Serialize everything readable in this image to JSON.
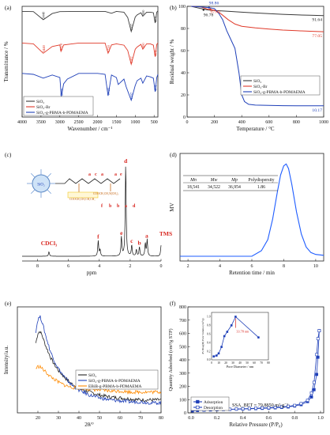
{
  "chart_data": [
    {
      "panel": "(a)",
      "type": "line",
      "xlabel": "Wavenumber / cm⁻¹",
      "ylabel": "Transmittance / %",
      "xlim": [
        4000,
        400
      ],
      "ticks_x": [
        "4000",
        "3500",
        "3000",
        "2500",
        "2000",
        "1500",
        "1000",
        "500"
      ],
      "tick_vals_x": [
        4000,
        3500,
        3000,
        2500,
        2000,
        1500,
        1000,
        500
      ],
      "legend": [
        "SiO₂",
        "SiO₂-Br",
        "SiO₂-g-PBMA-b-PDMAEMA"
      ],
      "legend_position": "bottom-left",
      "colors": [
        "#3a3a3a",
        "#e03a2a",
        "#1e3fb8"
      ],
      "annotations": [
        {
          "text": "3440",
          "series": 0,
          "x": 3440
        },
        {
          "text": "1107",
          "series": 0,
          "x": 1107
        },
        {
          "text": "800",
          "series": 0,
          "x": 800
        },
        {
          "text": "474",
          "series": 0,
          "x": 474
        },
        {
          "text": "3440",
          "series": 1,
          "x": 3440
        },
        {
          "text": "2970",
          "series": 1,
          "x": 2970
        },
        {
          "text": "1720",
          "series": 1,
          "x": 1720
        },
        {
          "text": "1107",
          "series": 1,
          "x": 1107
        },
        {
          "text": "800",
          "series": 1,
          "x": 800
        },
        {
          "text": "474",
          "series": 1,
          "x": 474
        },
        {
          "text": "2960",
          "series": 2,
          "x": 2960
        },
        {
          "text": "1720",
          "series": 2,
          "x": 1720
        },
        {
          "text": "1107",
          "series": 2,
          "x": 1107
        },
        {
          "text": "474",
          "series": 2,
          "x": 474
        }
      ],
      "series": [
        {
          "name": "SiO₂",
          "x": [
            4000,
            3700,
            3440,
            3200,
            3000,
            2500,
            2000,
            1800,
            1630,
            1500,
            1300,
            1200,
            1107,
            1000,
            950,
            850,
            800,
            700,
            600,
            520,
            474,
            430,
            400
          ],
          "y": [
            0.93,
            0.92,
            0.62,
            0.85,
            0.92,
            0.93,
            0.93,
            0.93,
            0.86,
            0.93,
            0.9,
            0.7,
            0.18,
            0.72,
            0.8,
            0.88,
            0.75,
            0.9,
            0.9,
            0.88,
            0.5,
            0.9,
            0.95
          ]
        },
        {
          "name": "SiO₂-Br",
          "x": [
            4000,
            3700,
            3440,
            3200,
            3000,
            2970,
            2900,
            2500,
            2000,
            1800,
            1720,
            1630,
            1500,
            1300,
            1200,
            1107,
            1000,
            950,
            850,
            800,
            700,
            600,
            520,
            474,
            430,
            400
          ],
          "y": [
            0.93,
            0.9,
            0.55,
            0.8,
            0.86,
            0.62,
            0.86,
            0.93,
            0.93,
            0.93,
            0.55,
            0.86,
            0.9,
            0.85,
            0.65,
            0.14,
            0.7,
            0.78,
            0.88,
            0.7,
            0.9,
            0.9,
            0.85,
            0.42,
            0.88,
            0.93
          ]
        },
        {
          "name": "SiO₂-g-PBMA-b-PDMAEMA",
          "x": [
            4000,
            3700,
            3440,
            3200,
            3000,
            2960,
            2900,
            2800,
            2500,
            2000,
            1800,
            1720,
            1630,
            1500,
            1450,
            1300,
            1240,
            1107,
            1000,
            950,
            850,
            800,
            700,
            600,
            520,
            474,
            430,
            400
          ],
          "y": [
            0.93,
            0.9,
            0.78,
            0.88,
            0.8,
            0.2,
            0.6,
            0.75,
            0.93,
            0.93,
            0.9,
            0.22,
            0.88,
            0.8,
            0.58,
            0.75,
            0.5,
            0.08,
            0.55,
            0.7,
            0.78,
            0.62,
            0.85,
            0.82,
            0.78,
            0.35,
            0.8,
            0.9
          ]
        }
      ]
    },
    {
      "panel": "(b)",
      "type": "line",
      "xlabel": "Temperature / °C",
      "ylabel": "Residual weight / %",
      "xlim": [
        0,
        1000
      ],
      "ylim": [
        0,
        100
      ],
      "ticks_x": [
        "0",
        "200",
        "400",
        "600",
        "800",
        "1000"
      ],
      "ticks_y": [
        "0",
        "20",
        "40",
        "60",
        "80",
        "100"
      ],
      "legend": [
        "SiO₂",
        "SiO₂-Br",
        "SiO₂-g-PBMA-b-PDMAEMA"
      ],
      "legend_position": "center-right",
      "colors": [
        "#3a3a3a",
        "#e03a2a",
        "#1e3fb8"
      ],
      "annotations": [
        {
          "text": "98.86",
          "x": 160,
          "y": 98.86
        },
        {
          "text": "96.78",
          "x": 120,
          "y": 96.78
        },
        {
          "text": "97.40",
          "x": 170,
          "y": 97.4
        },
        {
          "text": "91.64",
          "x": 1000,
          "y": 91.64
        },
        {
          "text": "77.05",
          "x": 1000,
          "y": 77.05
        },
        {
          "text": "10.17",
          "x": 1000,
          "y": 10.17
        }
      ],
      "series": [
        {
          "name": "SiO₂",
          "x": [
            30,
            100,
            150,
            200,
            300,
            400,
            500,
            600,
            700,
            800,
            900,
            1000
          ],
          "y": [
            100,
            98,
            96.78,
            96.3,
            95.5,
            94.7,
            94,
            93.4,
            92.8,
            92.3,
            91.9,
            91.64
          ]
        },
        {
          "name": "SiO₂-Br",
          "x": [
            30,
            100,
            150,
            200,
            250,
            300,
            350,
            400,
            500,
            600,
            700,
            800,
            900,
            1000
          ],
          "y": [
            100,
            99.5,
            97.4,
            96.5,
            93,
            88,
            84,
            82,
            80.5,
            79.5,
            78.6,
            78,
            77.5,
            77.05
          ]
        },
        {
          "name": "SiO₂-g-PBMA-b-PDMAEMA",
          "x": [
            30,
            100,
            160,
            200,
            230,
            260,
            290,
            320,
            350,
            380,
            400,
            420,
            450,
            500,
            600,
            700,
            800,
            900,
            1000
          ],
          "y": [
            100,
            99.5,
            98.86,
            98,
            94,
            88,
            78,
            70,
            62,
            40,
            20,
            14,
            11.5,
            10.8,
            10.5,
            10.3,
            10.25,
            10.2,
            10.17
          ]
        }
      ]
    },
    {
      "panel": "(c)",
      "type": "line",
      "xlabel": "ppm",
      "xlim": [
        9,
        0
      ],
      "ticks_x": [
        "8",
        "6",
        "4",
        "2",
        "0"
      ],
      "tick_vals_x": [
        8,
        6,
        4,
        2,
        0
      ],
      "peak_labels": [
        {
          "text": "CDCl₃",
          "x": 7.26
        },
        {
          "text": "f",
          "x": 4.07
        },
        {
          "text": "e",
          "x": 2.57
        },
        {
          "text": "d",
          "x": 2.29
        },
        {
          "text": "c",
          "x": 1.9
        },
        {
          "text": "b",
          "x": 1.4
        },
        {
          "text": "a",
          "x": 0.93
        },
        {
          "text": "TMS",
          "x": 0
        }
      ],
      "peaks": [
        {
          "x": 7.26,
          "h": 0.05
        },
        {
          "x": 4.07,
          "h": 0.17
        },
        {
          "x": 3.95,
          "h": 0.07
        },
        {
          "x": 2.57,
          "h": 0.21
        },
        {
          "x": 2.29,
          "h": 1.0
        },
        {
          "x": 1.9,
          "h": 0.12
        },
        {
          "x": 1.6,
          "h": 0.07
        },
        {
          "x": 1.4,
          "h": 0.1
        },
        {
          "x": 1.02,
          "h": 0.14
        },
        {
          "x": 0.9,
          "h": 0.18
        },
        {
          "x": 0.0,
          "h": 0.12
        }
      ],
      "structure_labels": [
        "a",
        "c",
        "a",
        "a",
        "e",
        "f",
        "b",
        "b",
        "a",
        "d",
        "COOCH₂CH₂N(CH₃)₂",
        "COOCH₂CH₂CH₂CH₃",
        "SiO₂"
      ]
    },
    {
      "panel": "(d)",
      "type": "line",
      "xlabel": "Retention time / min",
      "ylabel": "MV",
      "xlim": [
        1.5,
        10.5
      ],
      "ticks_x": [
        "2",
        "4",
        "6",
        "8",
        "10"
      ],
      "table": {
        "headers": [
          "Mn",
          "Mw",
          "Mp",
          "Polydispersity"
        ],
        "row": [
          "18,541",
          "34,522",
          "36,954",
          "1.86"
        ]
      },
      "series": [
        {
          "name": "GPC",
          "x": [
            1.5,
            6.0,
            6.6,
            7.0,
            7.3,
            7.6,
            7.8,
            8.0,
            8.15,
            8.3,
            8.5,
            8.8,
            9.1,
            9.4,
            9.7,
            10.0,
            10.5
          ],
          "y": [
            0,
            0,
            0.06,
            0.18,
            0.4,
            0.7,
            0.88,
            0.98,
            1.0,
            0.95,
            0.78,
            0.48,
            0.24,
            0.1,
            0.04,
            0.02,
            0.01
          ]
        }
      ],
      "colors": [
        "#1e5cff"
      ]
    },
    {
      "panel": "(e)",
      "type": "line",
      "xlabel": "2θ/°",
      "ylabel": "Intensity/a.u.",
      "xlim": [
        10,
        80
      ],
      "ticks_x": [
        "20",
        "30",
        "40",
        "50",
        "60",
        "70",
        "80"
      ],
      "tick_vals_x": [
        20,
        30,
        40,
        50,
        60,
        70,
        80
      ],
      "legend": [
        "SiO₂",
        "SiO₂-g-PBMA-b-PDMAEMA",
        "EBiB-g-PBMA-b-PDMAEMA"
      ],
      "legend_position": "right",
      "colors": [
        "#222222",
        "#1e3fb8",
        "#ff8a00"
      ],
      "series": [
        {
          "name": "SiO₂",
          "x": [
            19,
            20,
            21,
            22,
            23,
            24,
            26,
            28,
            30,
            33,
            36,
            40,
            45,
            50,
            55,
            60,
            65,
            70,
            75,
            80
          ],
          "y": [
            0.68,
            0.78,
            0.8,
            0.76,
            0.7,
            0.64,
            0.54,
            0.46,
            0.4,
            0.33,
            0.27,
            0.22,
            0.18,
            0.15,
            0.13,
            0.12,
            0.11,
            0.1,
            0.1,
            0.1
          ]
        },
        {
          "name": "SiO₂-g-PBMA-b-PDMAEMA",
          "x": [
            19,
            20,
            21,
            22,
            23,
            24,
            26,
            28,
            30,
            33,
            36,
            40,
            45,
            50,
            55,
            60,
            65,
            70,
            75,
            80
          ],
          "y": [
            0.8,
            0.92,
            0.95,
            0.9,
            0.82,
            0.74,
            0.6,
            0.5,
            0.42,
            0.33,
            0.26,
            0.2,
            0.15,
            0.12,
            0.1,
            0.09,
            0.08,
            0.08,
            0.07,
            0.07
          ]
        },
        {
          "name": "EBiB-g-PBMA-b-PDMAEMA",
          "x": [
            19,
            20,
            21,
            22,
            24,
            26,
            28,
            30,
            33,
            36,
            40,
            45,
            50,
            55,
            60,
            65,
            70,
            75,
            80
          ],
          "y": [
            0.42,
            0.44,
            0.44,
            0.42,
            0.38,
            0.34,
            0.31,
            0.28,
            0.25,
            0.23,
            0.22,
            0.21,
            0.2,
            0.19,
            0.19,
            0.18,
            0.18,
            0.18,
            0.18
          ]
        }
      ]
    },
    {
      "panel": "(f)",
      "type": "line",
      "xlabel": "Relative Pressure (P/P₀)",
      "ylabel": "Quantity Adsorbed (cm³/g STP)",
      "xlim": [
        0,
        1
      ],
      "ticks_x": [
        "0.0",
        "0.2",
        "0.4",
        "0.6",
        "0.8",
        "1.0"
      ],
      "ticks_y": [
        "0",
        "100",
        "200",
        "300",
        "400",
        "500",
        "600",
        "700",
        "800"
      ],
      "ylim": [
        0,
        800
      ],
      "legend": [
        "Adsorption",
        "Desorption"
      ],
      "legend_position": "bottom-left",
      "ssa_text": "SSA_BET = 79.8850 m²·g⁻¹",
      "colors": [
        "#1e3fb8",
        "#1e3fb8"
      ],
      "series": [
        {
          "name": "Adsorption",
          "x": [
            0.01,
            0.05,
            0.1,
            0.15,
            0.2,
            0.25,
            0.3,
            0.35,
            0.4,
            0.45,
            0.5,
            0.55,
            0.6,
            0.65,
            0.7,
            0.75,
            0.8,
            0.85,
            0.9,
            0.93,
            0.95,
            0.97,
            0.98,
            0.99
          ],
          "y": [
            14,
            18,
            20,
            22,
            24,
            25,
            26,
            28,
            29,
            31,
            32,
            34,
            36,
            38,
            41,
            45,
            52,
            62,
            85,
            120,
            175,
            290,
            420,
            620
          ]
        },
        {
          "name": "Desorption",
          "x": [
            0.99,
            0.98,
            0.97,
            0.95,
            0.93,
            0.9,
            0.85,
            0.8,
            0.75,
            0.7,
            0.65,
            0.6,
            0.55,
            0.5,
            0.45,
            0.4,
            0.35,
            0.3,
            0.2,
            0.1
          ],
          "y": [
            620,
            560,
            440,
            230,
            150,
            95,
            70,
            56,
            50,
            45,
            42,
            39,
            37,
            35,
            33,
            31,
            29,
            27,
            25,
            21
          ]
        }
      ],
      "inset": {
        "xlabel": "Pore Diameter / nm",
        "ylabel": "dV/dlog(D) Pore Volume (cm³/g)",
        "xlim": [
          0,
          80
        ],
        "ylim": [
          0,
          1.1
        ],
        "ticks_x": [
          "0",
          "10",
          "20",
          "30",
          "40",
          "50",
          "60",
          "70",
          "80"
        ],
        "ticks_y": [
          "0.0",
          "0.2",
          "0.4",
          "0.6",
          "0.8",
          "1.0"
        ],
        "annotation": {
          "text": "33.78 nm",
          "x": 33.78,
          "y": 1.0
        },
        "x": [
          3,
          7,
          10,
          14,
          18,
          22,
          28,
          33.78,
          66
        ],
        "y": [
          0.08,
          0.1,
          0.15,
          0.3,
          0.55,
          0.65,
          0.8,
          1.0,
          0.52
        ]
      }
    }
  ]
}
